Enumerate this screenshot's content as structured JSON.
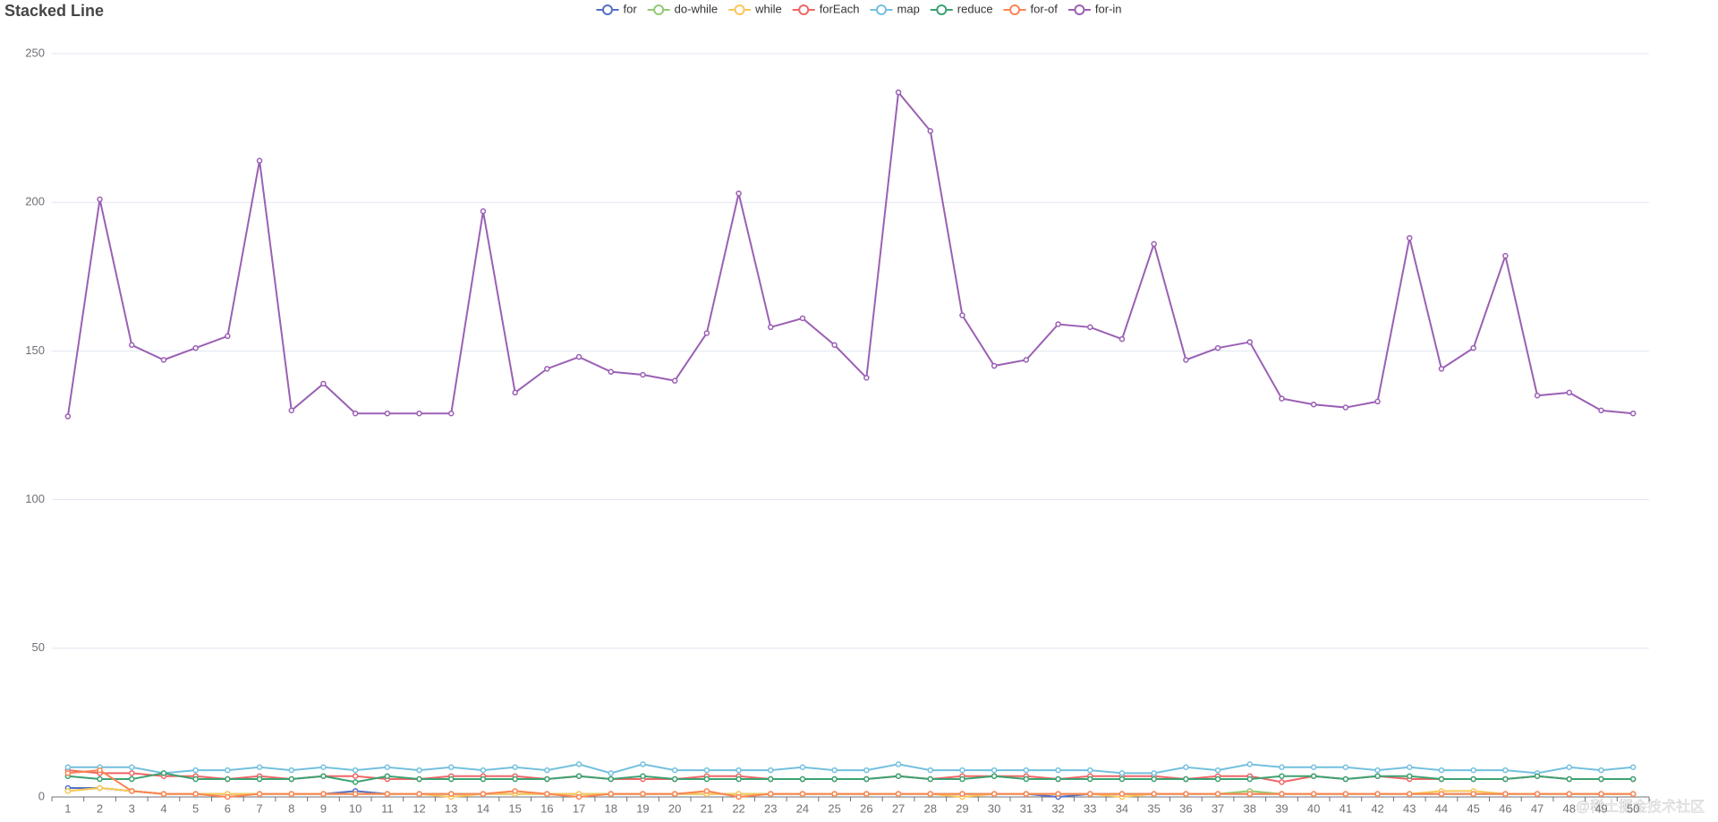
{
  "chart_data": {
    "type": "line",
    "title": "Stacked Line",
    "categories": [
      "1",
      "2",
      "3",
      "4",
      "5",
      "6",
      "7",
      "8",
      "9",
      "10",
      "11",
      "12",
      "13",
      "14",
      "15",
      "16",
      "17",
      "18",
      "19",
      "20",
      "21",
      "22",
      "23",
      "24",
      "25",
      "26",
      "27",
      "28",
      "29",
      "30",
      "31",
      "32",
      "33",
      "34",
      "35",
      "36",
      "37",
      "38",
      "39",
      "40",
      "41",
      "42",
      "43",
      "44",
      "45",
      "46",
      "47",
      "48",
      "49",
      "50"
    ],
    "series": [
      {
        "name": "for",
        "color": "#5470c6",
        "values": [
          3,
          3,
          2,
          1,
          1,
          1,
          1,
          1,
          1,
          2,
          1,
          1,
          1,
          1,
          1,
          1,
          1,
          1,
          1,
          1,
          1,
          1,
          1,
          1,
          1,
          1,
          1,
          1,
          1,
          1,
          1,
          0,
          1,
          1,
          1,
          1,
          1,
          1,
          1,
          1,
          1,
          1,
          1,
          1,
          1,
          1,
          1,
          1,
          1,
          1
        ]
      },
      {
        "name": "do-while",
        "color": "#91cc75",
        "values": [
          2,
          3,
          2,
          1,
          1,
          1,
          1,
          1,
          1,
          1,
          1,
          1,
          1,
          1,
          1,
          1,
          1,
          1,
          1,
          1,
          1,
          1,
          1,
          1,
          1,
          1,
          1,
          1,
          1,
          1,
          1,
          1,
          1,
          1,
          1,
          1,
          1,
          2,
          1,
          1,
          1,
          1,
          1,
          1,
          1,
          1,
          1,
          1,
          1,
          1
        ]
      },
      {
        "name": "while",
        "color": "#fac858",
        "values": [
          2,
          3,
          2,
          1,
          1,
          1,
          1,
          1,
          1,
          1,
          1,
          1,
          0,
          1,
          1,
          1,
          1,
          1,
          1,
          1,
          1,
          1,
          1,
          1,
          1,
          1,
          1,
          1,
          0,
          1,
          1,
          1,
          1,
          0,
          1,
          1,
          1,
          1,
          1,
          1,
          1,
          1,
          1,
          2,
          2,
          1,
          1,
          1,
          1,
          1
        ]
      },
      {
        "name": "forEach",
        "color": "#ee6666",
        "values": [
          9,
          8,
          8,
          7,
          7,
          6,
          7,
          6,
          7,
          7,
          6,
          6,
          7,
          7,
          7,
          6,
          7,
          6,
          6,
          6,
          7,
          7,
          6,
          6,
          6,
          6,
          7,
          6,
          7,
          7,
          7,
          6,
          7,
          7,
          7,
          6,
          7,
          7,
          5,
          7,
          6,
          7,
          6,
          6,
          6,
          6,
          7,
          6,
          6,
          6
        ]
      },
      {
        "name": "map",
        "color": "#73c0de",
        "values": [
          10,
          10,
          10,
          8,
          9,
          9,
          10,
          9,
          10,
          9,
          10,
          9,
          10,
          9,
          10,
          9,
          11,
          8,
          11,
          9,
          9,
          9,
          9,
          10,
          9,
          9,
          11,
          9,
          9,
          9,
          9,
          9,
          9,
          8,
          8,
          10,
          9,
          11,
          10,
          10,
          10,
          9,
          10,
          9,
          9,
          9,
          8,
          10,
          9,
          10
        ]
      },
      {
        "name": "reduce",
        "color": "#3ba272",
        "values": [
          7,
          6,
          6,
          8,
          6,
          6,
          6,
          6,
          7,
          5,
          7,
          6,
          6,
          6,
          6,
          6,
          7,
          6,
          7,
          6,
          6,
          6,
          6,
          6,
          6,
          6,
          7,
          6,
          6,
          7,
          6,
          6,
          6,
          6,
          6,
          6,
          6,
          6,
          7,
          7,
          6,
          7,
          7,
          6,
          6,
          6,
          7,
          6,
          6,
          6
        ]
      },
      {
        "name": "for-of",
        "color": "#fc8452",
        "values": [
          8,
          9,
          2,
          1,
          1,
          0,
          1,
          1,
          1,
          1,
          1,
          1,
          1,
          1,
          2,
          1,
          0,
          1,
          1,
          1,
          2,
          0,
          1,
          1,
          1,
          1,
          1,
          1,
          1,
          1,
          1,
          1,
          1,
          1,
          1,
          1,
          1,
          1,
          1,
          1,
          1,
          1,
          1,
          1,
          1,
          1,
          1,
          1,
          1,
          1
        ]
      },
      {
        "name": "for-in",
        "color": "#9a60b4",
        "values": [
          128,
          201,
          152,
          147,
          151,
          155,
          214,
          130,
          139,
          129,
          129,
          129,
          129,
          197,
          136,
          144,
          148,
          143,
          142,
          140,
          156,
          203,
          158,
          161,
          152,
          141,
          237,
          224,
          162,
          145,
          147,
          159,
          158,
          154,
          186,
          147,
          151,
          153,
          134,
          132,
          131,
          133,
          188,
          144,
          151,
          182,
          135,
          136,
          130,
          129
        ]
      }
    ],
    "ylim": [
      0,
      250
    ],
    "yticks": [
      0,
      50,
      100,
      150,
      200,
      250
    ],
    "grid": true
  },
  "watermark": "@稀土掘金技术社区"
}
